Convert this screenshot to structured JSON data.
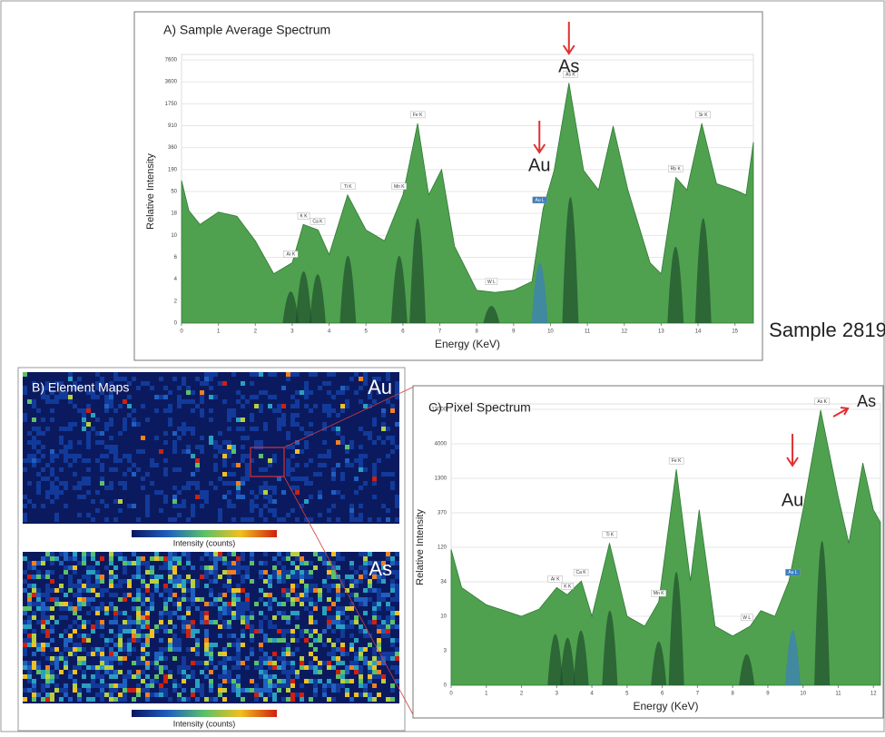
{
  "chart_data": [
    {
      "type": "area",
      "title": "A) Sample Average Spectrum",
      "x_label": "Energy (KeV)",
      "y_label": "Relative Intensity",
      "color": "#4fa14f",
      "x": [
        0,
        0.2,
        0.5,
        1,
        1.5,
        2,
        2.5,
        3,
        3.3,
        3.7,
        4,
        4.5,
        5,
        5.5,
        6,
        6.4,
        6.7,
        7.05,
        7.4,
        8,
        8.5,
        9,
        9.5,
        9.8,
        10.1,
        10.5,
        10.9,
        11.3,
        11.7,
        12.1,
        12.7,
        13,
        13.4,
        13.7,
        14.1,
        14.5,
        15,
        15.3,
        15.5
      ],
      "values": [
        120,
        22,
        14,
        20,
        17,
        9,
        4.5,
        5.5,
        14,
        12,
        6.5,
        45,
        12,
        9,
        45,
        1000,
        45,
        190,
        8,
        3,
        2.8,
        3,
        3.8,
        25,
        185,
        3500,
        185,
        60,
        900,
        60,
        5.5,
        4.5,
        140,
        60,
        1000,
        100,
        60,
        45,
        500
      ],
      "xlim": [
        0,
        15.5
      ],
      "xticks": [
        0,
        1,
        2,
        3,
        4,
        5,
        6,
        7,
        8,
        9,
        10,
        11,
        12,
        13,
        14,
        15
      ],
      "ylim": [
        0,
        7600
      ],
      "yticks": [
        0,
        2,
        4,
        6,
        10,
        18,
        50,
        190,
        360,
        910,
        1750,
        3600,
        7600
      ],
      "peaks": [
        {
          "label": "Ar K",
          "x": 2.96,
          "y": 5.5
        },
        {
          "label": "K K",
          "x": 3.31,
          "y": 14
        },
        {
          "label": "Ca K",
          "x": 3.69,
          "y": 12
        },
        {
          "label": "Ti K",
          "x": 4.51,
          "y": 45
        },
        {
          "label": "Mn K",
          "x": 5.9,
          "y": 45
        },
        {
          "label": "Fe K",
          "x": 6.4,
          "y": 1000
        },
        {
          "label": "W L",
          "x": 8.4,
          "y": 3
        },
        {
          "label": "Au L",
          "x": 9.71,
          "y": 25,
          "color": "#3a7fc0"
        },
        {
          "label": "As K",
          "x": 10.54,
          "y": 3500
        },
        {
          "label": "Rb K",
          "x": 13.39,
          "y": 140
        },
        {
          "label": "Sr K",
          "x": 14.14,
          "y": 1000
        }
      ],
      "annotations": [
        {
          "text": "As",
          "x": 10.5
        },
        {
          "text": "Au",
          "x": 9.7
        }
      ]
    },
    {
      "type": "area",
      "title": "C) Pixel Spectrum",
      "x_label": "Energy (KeV)",
      "y_label": "Relative Intensity",
      "color": "#4fa14f",
      "x": [
        0,
        0.3,
        1,
        2,
        2.5,
        3,
        3.3,
        3.7,
        4,
        4.5,
        5,
        5.5,
        5.9,
        6.4,
        6.8,
        7.05,
        7.5,
        8,
        8.5,
        8.8,
        9.2,
        9.6,
        10,
        10.5,
        11,
        11.3,
        11.7,
        12,
        12.2
      ],
      "values": [
        115,
        30,
        18,
        10,
        15,
        30,
        25,
        36,
        10,
        150,
        10,
        8,
        20,
        2000,
        36,
        450,
        8,
        6,
        8,
        14,
        10,
        36,
        450,
        12800,
        800,
        150,
        2500,
        450,
        300
      ],
      "xlim": [
        0,
        12.2
      ],
      "xticks": [
        0,
        1,
        2,
        3,
        4,
        5,
        6,
        7,
        8,
        9,
        10,
        11,
        12
      ],
      "ylim": [
        0,
        13000
      ],
      "yticks": [
        0,
        3,
        10,
        34,
        120,
        370,
        1300,
        4000,
        13000
      ],
      "peaks": [
        {
          "label": "Ar K",
          "x": 2.96,
          "y": 30
        },
        {
          "label": "K K",
          "x": 3.31,
          "y": 25
        },
        {
          "label": "Ca K",
          "x": 3.69,
          "y": 36
        },
        {
          "label": "Ti K",
          "x": 4.51,
          "y": 150
        },
        {
          "label": "Mn K",
          "x": 5.9,
          "y": 20
        },
        {
          "label": "Fe K",
          "x": 6.4,
          "y": 2000
        },
        {
          "label": "W L",
          "x": 8.4,
          "y": 8
        },
        {
          "label": "Au L",
          "x": 9.71,
          "y": 36,
          "color": "#3a7fc0"
        },
        {
          "label": "As K",
          "x": 10.54,
          "y": 12800
        }
      ],
      "annotations": [
        {
          "text": "As",
          "x": 10.5
        },
        {
          "text": "Au",
          "x": 9.7
        }
      ]
    }
  ],
  "sample_label": "Sample 2819",
  "element_maps": {
    "title": "B) Element Maps",
    "maps": [
      {
        "element": "Au",
        "colorbar_label": "Intensity (counts)"
      },
      {
        "element": "As",
        "colorbar_label": "Intensity (counts)"
      }
    ]
  }
}
